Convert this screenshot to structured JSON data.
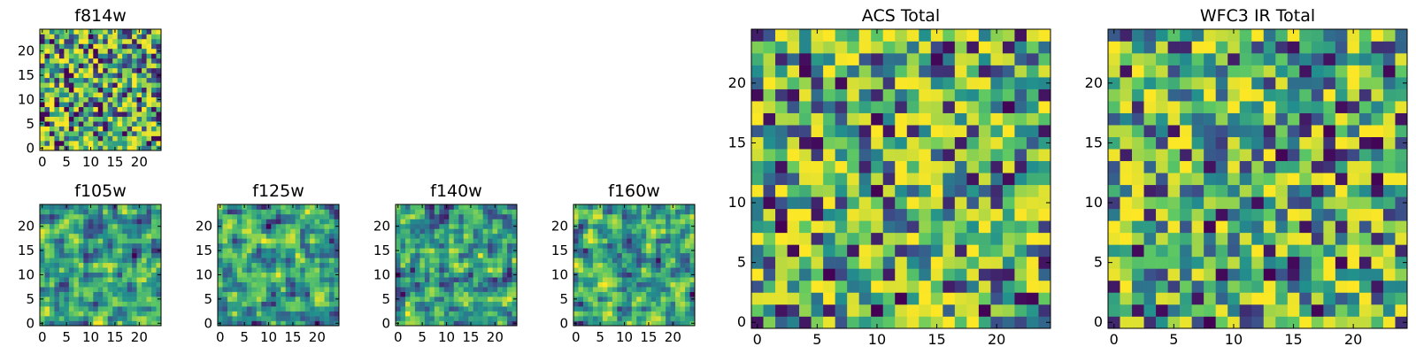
{
  "chart_data": [
    {
      "id": "f814w",
      "type": "heatmap",
      "title": "f814w",
      "grid_size": 25,
      "xlim": [
        -0.5,
        24.5
      ],
      "ylim": [
        -0.5,
        24.5
      ],
      "xticks": [
        0,
        5,
        10,
        15,
        20
      ],
      "yticks": [
        0,
        5,
        10,
        15,
        20
      ],
      "seed": 814,
      "distribution": "noise",
      "smoothing": 0
    },
    {
      "id": "f105w",
      "type": "heatmap",
      "title": "f105w",
      "grid_size": 25,
      "xlim": [
        -0.5,
        24.5
      ],
      "ylim": [
        -0.5,
        24.5
      ],
      "xticks": [
        0,
        5,
        10,
        15,
        20
      ],
      "yticks": [
        0,
        5,
        10,
        15,
        20
      ],
      "seed": 105,
      "distribution": "noise",
      "smoothing": 1
    },
    {
      "id": "f125w",
      "type": "heatmap",
      "title": "f125w",
      "grid_size": 25,
      "xlim": [
        -0.5,
        24.5
      ],
      "ylim": [
        -0.5,
        24.5
      ],
      "xticks": [
        0,
        5,
        10,
        15,
        20
      ],
      "yticks": [
        0,
        5,
        10,
        15,
        20
      ],
      "seed": 125,
      "distribution": "noise",
      "smoothing": 1
    },
    {
      "id": "f140w",
      "type": "heatmap",
      "title": "f140w",
      "grid_size": 25,
      "xlim": [
        -0.5,
        24.5
      ],
      "ylim": [
        -0.5,
        24.5
      ],
      "xticks": [
        0,
        5,
        10,
        15,
        20
      ],
      "yticks": [
        0,
        5,
        10,
        15,
        20
      ],
      "seed": 140,
      "distribution": "noise",
      "smoothing": 1
    },
    {
      "id": "f160w",
      "type": "heatmap",
      "title": "f160w",
      "grid_size": 25,
      "xlim": [
        -0.5,
        24.5
      ],
      "ylim": [
        -0.5,
        24.5
      ],
      "xticks": [
        0,
        5,
        10,
        15,
        20
      ],
      "yticks": [
        0,
        5,
        10,
        15,
        20
      ],
      "seed": 160,
      "distribution": "noise",
      "smoothing": 1
    },
    {
      "id": "acs-total",
      "type": "heatmap",
      "title": "ACS Total",
      "grid_size": 25,
      "xlim": [
        -0.5,
        24.5
      ],
      "ylim": [
        -0.5,
        24.5
      ],
      "xticks": [
        0,
        5,
        10,
        15,
        20
      ],
      "yticks": [
        0,
        5,
        10,
        15,
        20
      ],
      "seed": 7001,
      "distribution": "noise",
      "smoothing": 0
    },
    {
      "id": "wfc3-ir-total",
      "type": "heatmap",
      "title": "WFC3 IR Total",
      "grid_size": 25,
      "xlim": [
        -0.5,
        24.5
      ],
      "ylim": [
        -0.5,
        24.5
      ],
      "xticks": [
        0,
        5,
        10,
        15,
        20
      ],
      "yticks": [
        0,
        5,
        10,
        15,
        20
      ],
      "seed": 7002,
      "distribution": "noise",
      "smoothing": 0
    }
  ],
  "colormap": [
    "#440154",
    "#3b528b",
    "#21908d",
    "#5dc863",
    "#fde725"
  ]
}
